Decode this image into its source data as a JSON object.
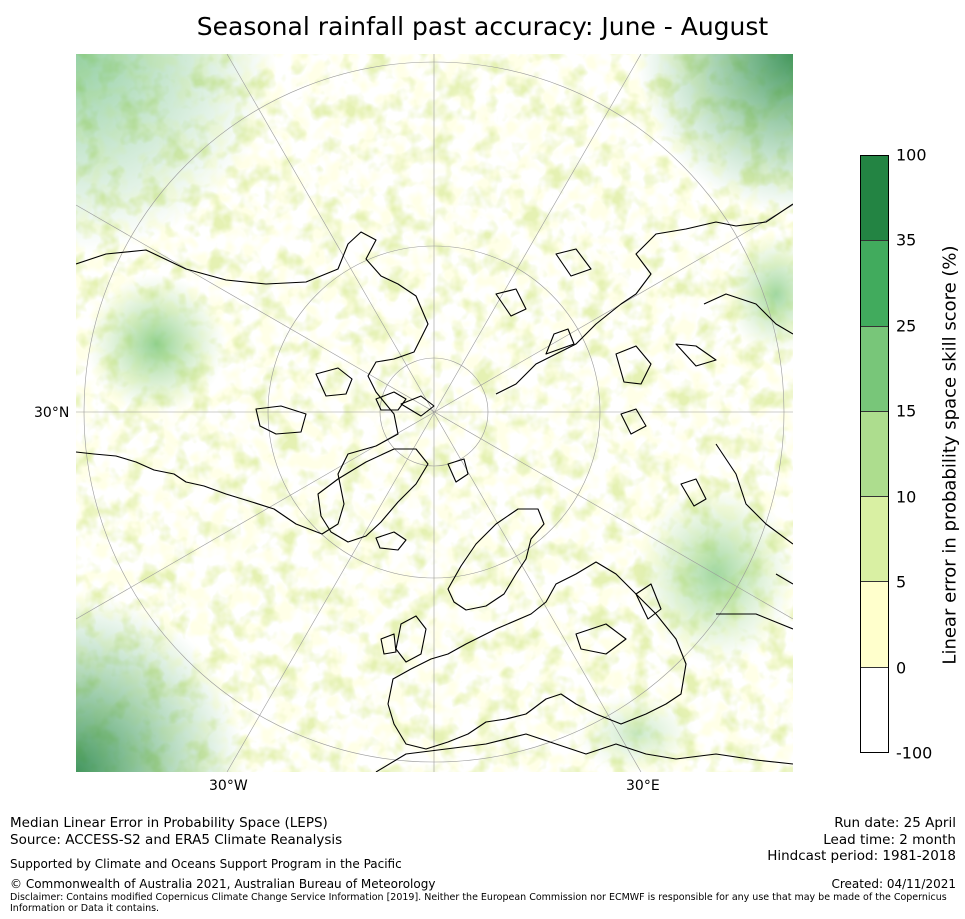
{
  "title": "Seasonal rainfall past accuracy: June - August",
  "map": {
    "projection": "north-polar-stereographic",
    "land_outline_color": "#000000",
    "graticule_color": "#9a9a9a",
    "lat_labels": [
      "30°N"
    ],
    "lon_labels": [
      "30°W",
      "30°E"
    ]
  },
  "colorbar": {
    "label": "Linear error in probability space skill score (%)",
    "ticks": [
      "100",
      "35",
      "25",
      "15",
      "10",
      "5",
      "0",
      "-100"
    ],
    "colors": [
      "#238443",
      "#41ab5d",
      "#78c679",
      "#addd8e",
      "#d9f0a3",
      "#ffffcc",
      "#ffffff"
    ]
  },
  "footer": {
    "line1": "Median Linear Error in Probability Space (LEPS)",
    "line2": "Source: ACCESS-S2 and ERA5 Climate Reanalysis",
    "support": "Supported by Climate and Oceans Support Program in the Pacific",
    "copyright": "© Commonwealth of Australia 2021, Australian Bureau of Meteorology",
    "disclaimer_1": "Disclaimer: Contains modified Copernicus Climate Change Service Information [2019]. Neither the European Commission nor ECMWF is responsible for any use that may be made of the Copernicus",
    "disclaimer_2": "Information or Data it contains.",
    "run_date": "Run date: 25 April",
    "lead_time": "Lead time: 2 month",
    "hindcast": "Hindcast period: 1981-2018",
    "created": "Created: 04/11/2021"
  }
}
